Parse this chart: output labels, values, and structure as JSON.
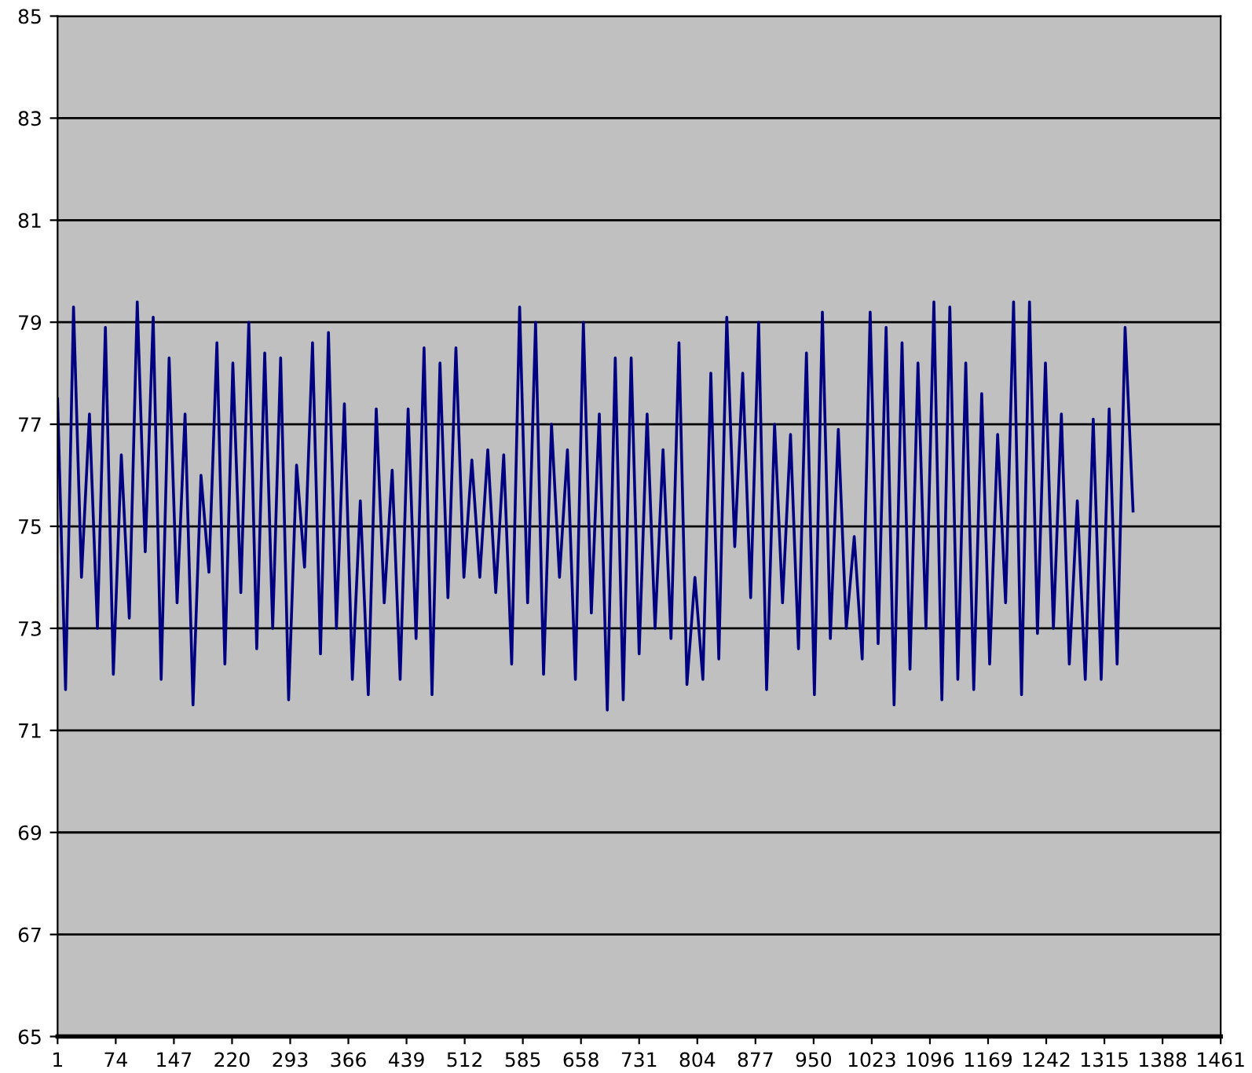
{
  "chart_data": {
    "type": "line",
    "color": "#000080",
    "x": [
      1,
      11,
      21,
      31,
      41,
      51,
      61,
      71,
      81,
      91,
      101,
      111,
      121,
      131,
      141,
      151,
      161,
      171,
      181,
      191,
      201,
      211,
      221,
      231,
      241,
      251,
      261,
      271,
      281,
      291,
      301,
      311,
      321,
      331,
      341,
      351,
      361,
      371,
      381,
      391,
      401,
      411,
      421,
      431,
      441,
      451,
      461,
      471,
      481,
      491,
      501,
      511,
      521,
      531,
      541,
      551,
      561,
      571,
      581,
      591,
      601,
      611,
      621,
      631,
      641,
      651,
      661,
      671,
      681,
      691,
      701,
      711,
      721,
      731,
      741,
      751,
      761,
      771,
      781,
      791,
      801,
      811,
      821,
      831,
      841,
      851,
      861,
      871,
      881,
      891,
      901,
      911,
      921,
      931,
      941,
      951,
      961,
      971,
      981,
      991,
      1001,
      1011,
      1021,
      1031,
      1041,
      1051,
      1061,
      1071,
      1081,
      1091,
      1101,
      1111,
      1121,
      1131,
      1141,
      1151,
      1161,
      1171,
      1181,
      1191,
      1201,
      1211,
      1221,
      1231,
      1241,
      1251,
      1261,
      1271,
      1281,
      1291,
      1301,
      1311,
      1321,
      1331,
      1341,
      1351
    ],
    "values": [
      77.5,
      71.8,
      79.3,
      74.0,
      77.2,
      73.0,
      78.9,
      72.1,
      76.4,
      73.2,
      79.4,
      74.5,
      79.1,
      72.0,
      78.3,
      73.5,
      77.2,
      71.5,
      76.0,
      74.1,
      78.6,
      72.3,
      78.2,
      73.7,
      79.0,
      72.6,
      78.4,
      73.0,
      78.3,
      71.6,
      76.2,
      74.2,
      78.6,
      72.5,
      78.8,
      73.0,
      77.4,
      72.0,
      75.5,
      71.7,
      77.3,
      73.5,
      76.1,
      72.0,
      77.3,
      72.8,
      78.5,
      71.7,
      78.2,
      73.6,
      78.5,
      74.0,
      76.3,
      74.0,
      76.5,
      73.7,
      76.4,
      72.3,
      79.3,
      73.5,
      79.0,
      72.1,
      77.0,
      74.0,
      76.5,
      72.0,
      79.0,
      73.3,
      77.2,
      71.4,
      78.3,
      71.6,
      78.3,
      72.5,
      77.2,
      73.0,
      76.5,
      72.8,
      78.6,
      71.9,
      74.0,
      72.0,
      78.0,
      72.4,
      79.1,
      74.6,
      78.0,
      73.6,
      79.0,
      71.8,
      77.0,
      73.5,
      76.8,
      72.6,
      78.4,
      71.7,
      79.2,
      72.8,
      76.9,
      73.0,
      74.8,
      72.4,
      79.2,
      72.7,
      78.9,
      71.5,
      78.6,
      72.2,
      78.2,
      73.0,
      79.4,
      71.6,
      79.3,
      72.0,
      78.2,
      71.8,
      77.6,
      72.3,
      76.8,
      73.5,
      79.4,
      71.7,
      79.4,
      72.9,
      78.2,
      73.0,
      77.2,
      72.3,
      75.5,
      72.0,
      77.1,
      72.0,
      77.3,
      72.3,
      78.9,
      75.3
    ],
    "xlim": [
      1,
      1461
    ],
    "xticks": [
      1,
      74,
      147,
      220,
      293,
      366,
      439,
      512,
      585,
      658,
      731,
      804,
      877,
      950,
      1023,
      1096,
      1169,
      1242,
      1315,
      1388,
      1461
    ],
    "ylim": [
      65,
      85
    ],
    "yticks": [
      65,
      67,
      69,
      71,
      73,
      75,
      77,
      79,
      81,
      83,
      85
    ],
    "grid": "y",
    "marker": "none",
    "line_style": "solid",
    "legend": false
  }
}
